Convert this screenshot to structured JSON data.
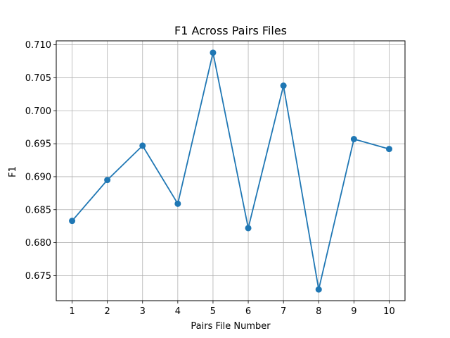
{
  "chart_data": {
    "type": "line",
    "title": "F1 Across Pairs Files",
    "xlabel": "Pairs File Number",
    "ylabel": "F1",
    "x": [
      1,
      2,
      3,
      4,
      5,
      6,
      7,
      8,
      9,
      10
    ],
    "values": [
      0.6833,
      0.6895,
      0.6947,
      0.6859,
      0.7088,
      0.6822,
      0.7038,
      0.6729,
      0.6957,
      0.6942
    ],
    "xticks": [
      1,
      2,
      3,
      4,
      5,
      6,
      7,
      8,
      9,
      10
    ],
    "xtick_labels": [
      "1",
      "2",
      "3",
      "4",
      "5",
      "6",
      "7",
      "8",
      "9",
      "10"
    ],
    "yticks": [
      0.675,
      0.68,
      0.685,
      0.69,
      0.695,
      0.7,
      0.705,
      0.71
    ],
    "ytick_labels": [
      "0.675",
      "0.680",
      "0.685",
      "0.690",
      "0.695",
      "0.700",
      "0.705",
      "0.710"
    ],
    "xlim": [
      0.55,
      10.45
    ],
    "ylim": [
      0.6712,
      0.7106
    ],
    "grid": true,
    "line_color": "#1f77b4",
    "marker": "circle"
  }
}
